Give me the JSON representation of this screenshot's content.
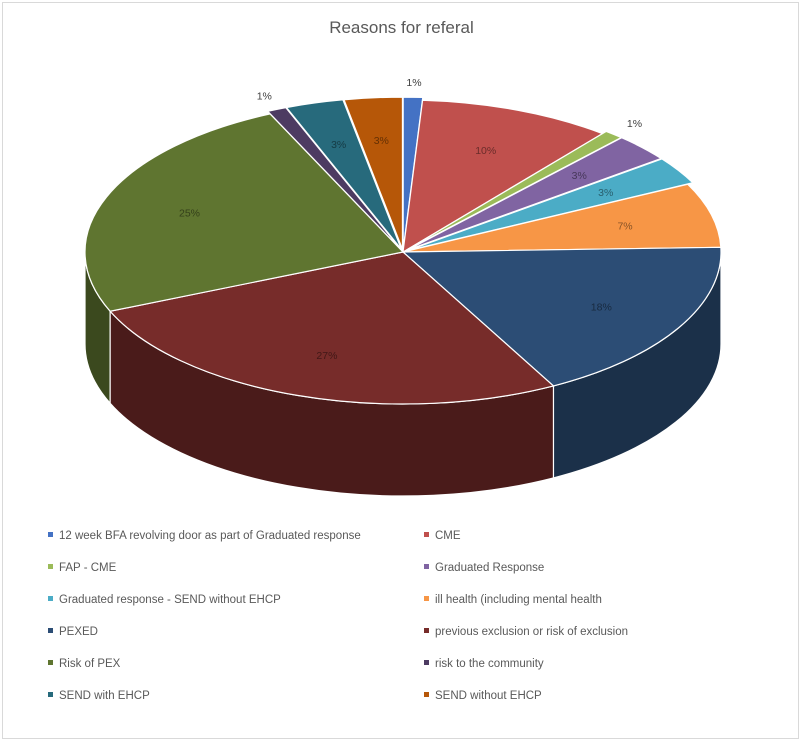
{
  "chart_data": {
    "type": "pie",
    "title": "Reasons for referal",
    "legend_position": "bottom",
    "slices": [
      {
        "name": "12 week BFA revolving door as part of Graduated response",
        "value": 1,
        "label": "1%",
        "color": "#4472c4"
      },
      {
        "name": "CME",
        "value": 10,
        "label": "10%",
        "color": "#c0504d"
      },
      {
        "name": "FAP - CME",
        "value": 1,
        "label": "1%",
        "color": "#9bbb59"
      },
      {
        "name": "Graduated Response",
        "value": 3,
        "label": "3%",
        "color": "#8064a2"
      },
      {
        "name": "Graduated response - SEND without EHCP",
        "value": 3,
        "label": "3%",
        "color": "#4bacc6"
      },
      {
        "name": "ill health (including mental health",
        "value": 7,
        "label": "7%",
        "color": "#f79646"
      },
      {
        "name": "PEXED",
        "value": 18,
        "label": "18%",
        "color": "#2c4d75"
      },
      {
        "name": "previous exclusion or risk of exclusion",
        "value": 27,
        "label": "27%",
        "color": "#772c2a"
      },
      {
        "name": "Risk of PEX",
        "value": 25,
        "label": "25%",
        "color": "#5f7530"
      },
      {
        "name": "risk to the community",
        "value": 1,
        "label": "1%",
        "color": "#4d3b62"
      },
      {
        "name": "SEND with EHCP",
        "value": 3,
        "label": "3%",
        "color": "#276a7c"
      },
      {
        "name": "SEND without EHCP",
        "value": 3,
        "label": "3%",
        "color": "#b65708"
      }
    ]
  }
}
